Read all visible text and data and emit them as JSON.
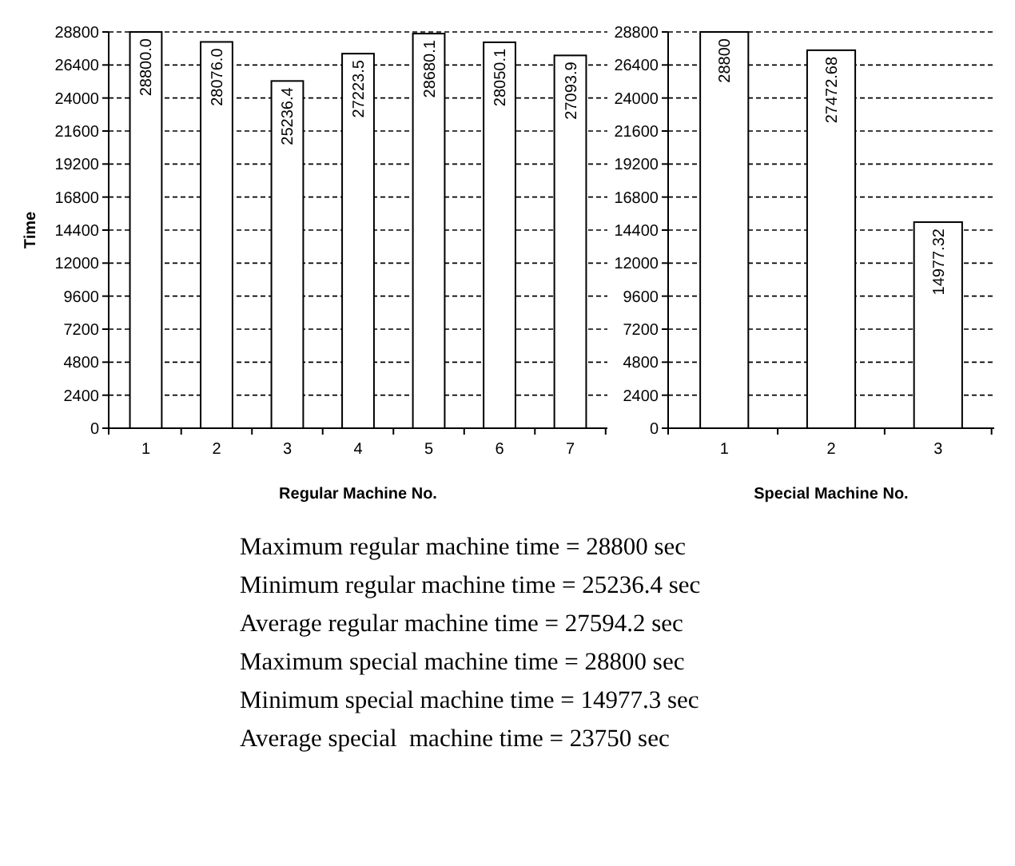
{
  "chart_data": [
    {
      "type": "bar",
      "ylabel": "Time",
      "xlabel": "Regular Machine No.",
      "categories": [
        "1",
        "2",
        "3",
        "4",
        "5",
        "6",
        "7"
      ],
      "values": [
        28800,
        28076,
        25236.4,
        27223.5,
        28680.1,
        28050.1,
        27093.9
      ],
      "value_labels": [
        "28800.0",
        "28076.0",
        "25236.4",
        "27223.5",
        "28680.1",
        "28050.1",
        "27093.9"
      ],
      "color": "#ffffff",
      "ylim": [
        0,
        28800
      ],
      "yticks": [
        0,
        2400,
        4800,
        7200,
        9600,
        12000,
        14400,
        16800,
        19200,
        21600,
        24000,
        26400,
        28800
      ],
      "grid": "y",
      "annotations": [
        "Maximum regular machine time = 28800 sec",
        "Minimum regular machine time = 25236.4 sec",
        "Average regular machine time = 27594.2 sec",
        "Maximum special machine time = 28800 sec",
        "Minimum special machine time = 14977.3 sec",
        "Average special  machine time = 23750 sec"
      ]
    },
    {
      "type": "bar",
      "xlabel": "Special Machine No.",
      "categories": [
        "1",
        "2",
        "3"
      ],
      "values": [
        28800,
        27472.68,
        14977.32
      ],
      "data_labels": true,
      "color": "#ffffff",
      "ylim": [
        0,
        28800
      ],
      "yticks": [
        0,
        2400,
        4800,
        7200,
        9600,
        12000,
        14400,
        16800,
        19200,
        21600,
        24000,
        26400,
        28800
      ],
      "grid": "y"
    }
  ]
}
